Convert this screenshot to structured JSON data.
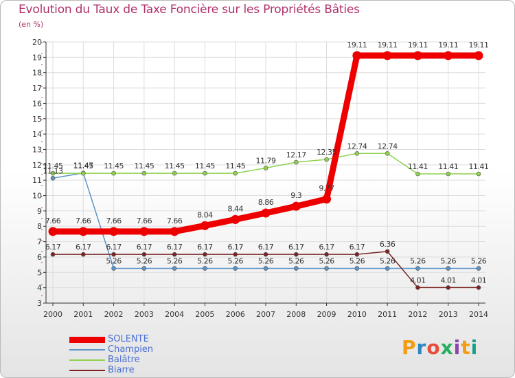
{
  "title": "Evolution du Taux de Taxe Foncière sur les Propriétés Bâties",
  "unit": "(en %)",
  "logo": {
    "text": "Proxiti",
    "colors": [
      "#f39c12",
      "#2e86c1",
      "#e74c3c",
      "#27ae60",
      "#8e44ad",
      "#f39c12",
      "#16a085"
    ]
  },
  "chart_data": {
    "type": "line",
    "title": "Evolution du Taux de Taxe Foncière sur les Propriétés Bâties",
    "ylabel": "(en %)",
    "xlabel": "",
    "ylim": [
      3,
      20
    ],
    "yticks": [
      "3",
      "4",
      "5",
      "6",
      "7",
      "8",
      "9",
      "10",
      "11",
      "12",
      "13",
      "14",
      "15",
      "16",
      "17",
      "18",
      "19",
      "20"
    ],
    "x": [
      "2000",
      "2001",
      "2002",
      "2003",
      "2004",
      "2005",
      "2006",
      "2007",
      "2008",
      "2009",
      "2010",
      "2011",
      "2012",
      "2013",
      "2014"
    ],
    "series": [
      {
        "name": "SOLENTE",
        "color": "#ee0000",
        "bold": true,
        "values": [
          7.66,
          7.66,
          7.66,
          7.66,
          7.66,
          8.04,
          8.44,
          8.86,
          9.3,
          9.77,
          19.11,
          19.11,
          19.11,
          19.11,
          19.11
        ],
        "labels": [
          "7.66",
          "7.66",
          "7.66",
          "7.66",
          "7.66",
          "8.04",
          "8.44",
          "8.86",
          "9.3",
          "9.77",
          "19.11",
          "19.11",
          "19.11",
          "19.11",
          "19.11"
        ]
      },
      {
        "name": "Champien",
        "color": "#5b93c7",
        "bold": false,
        "values": [
          11.13,
          11.47,
          5.26,
          5.26,
          5.26,
          5.26,
          5.26,
          5.26,
          5.26,
          5.26,
          5.26,
          5.26,
          5.26,
          5.26,
          5.26
        ],
        "labels": [
          "11.13",
          "11.47",
          "5.26",
          "5.26",
          "5.26",
          "5.26",
          "5.26",
          "5.26",
          "5.26",
          "5.26",
          "5.26",
          "5.26",
          "5.26",
          "5.26",
          "5.26"
        ]
      },
      {
        "name": "Balâtre",
        "color": "#8fd14f",
        "bold": false,
        "values": [
          11.45,
          11.45,
          11.45,
          11.45,
          11.45,
          11.45,
          11.45,
          11.79,
          12.17,
          12.35,
          12.74,
          12.74,
          11.41,
          11.41,
          11.41
        ],
        "labels": [
          "11.45",
          "11.45",
          "11.45",
          "11.45",
          "11.45",
          "11.45",
          "11.45",
          "11.79",
          "12.17",
          "12.35",
          "12.74",
          "12.74",
          "11.41",
          "11.41",
          "11.41"
        ]
      },
      {
        "name": "Biarre",
        "color": "#7a2424",
        "bold": false,
        "values": [
          6.17,
          6.17,
          6.17,
          6.17,
          6.17,
          6.17,
          6.17,
          6.17,
          6.17,
          6.17,
          6.17,
          6.36,
          4.01,
          4.01,
          4.01
        ],
        "labels": [
          "6.17",
          "6.17",
          "6.17",
          "6.17",
          "6.17",
          "6.17",
          "6.17",
          "6.17",
          "6.17",
          "6.17",
          "6.17",
          "6.36",
          "4.01",
          "4.01",
          "4.01"
        ]
      }
    ]
  }
}
